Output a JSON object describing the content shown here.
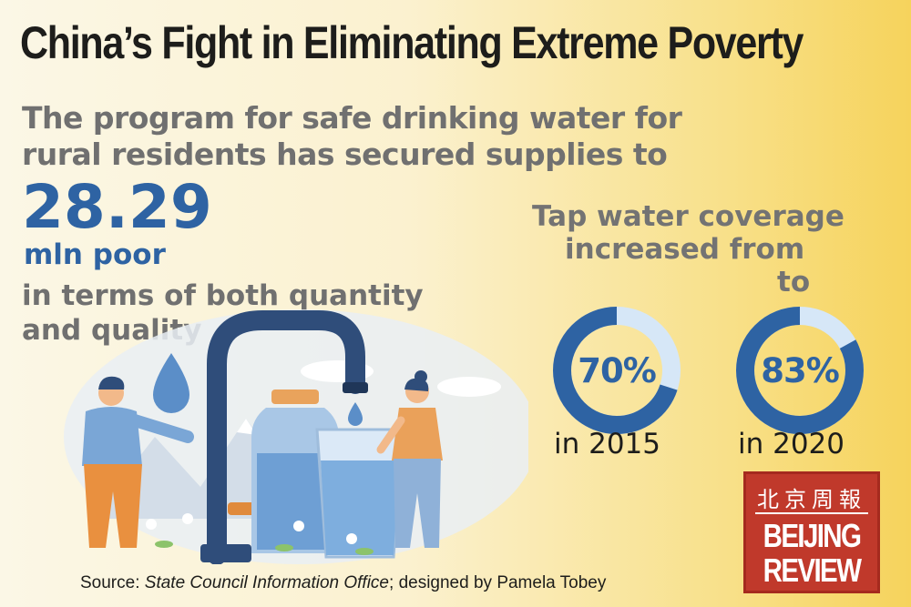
{
  "title": "China’s Fight in Eliminating Extreme Poverty",
  "intro": "The program for safe drinking water for rural residents has secured supplies to",
  "highlight": {
    "number": "28.29",
    "unit": "mln poor"
  },
  "qualifier": "in terms of both quantity and quality",
  "coverage": {
    "heading_line1": "Tap water coverage",
    "heading_line2": "increased from",
    "heading_line3": "to",
    "items": [
      {
        "label": "70%",
        "value": 70,
        "year_label": "in 2015"
      },
      {
        "label": "83%",
        "value": 83,
        "year_label": "in 2020"
      }
    ],
    "colors": {
      "filled": "#2e63a3",
      "remaining": "#d6e7f7"
    }
  },
  "source": {
    "prefix": "Source: ",
    "org": "State Council Information Office",
    "suffix": "; designed by Pamela Tobey"
  },
  "logo": {
    "chinese": "北京周報",
    "line1": "BEIJING",
    "line2": "REVIEW",
    "color": "#c0392b"
  }
}
